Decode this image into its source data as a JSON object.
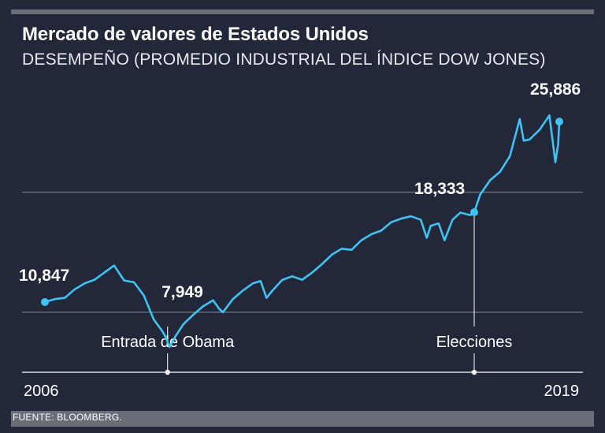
{
  "header": {
    "title": "Mercado de valores de Estados Unidos",
    "subtitle": "DESEMPEÑO (PROMEDIO INDUSTRIAL DEL ÍNDICE DOW JONES)"
  },
  "footer": {
    "source": "FUENTE: BLOOMBERG."
  },
  "colors": {
    "background": "#23273a",
    "line": "#3ec4f2",
    "grid": "#8a8d98",
    "text": "#ffffff"
  },
  "chart_data": {
    "type": "line",
    "title": "Mercado de valores de Estados Unidos",
    "subtitle": "DESEMPEÑO (PROMEDIO INDUSTRIAL DEL ÍNDICE DOW JONES)",
    "xlabel": "",
    "ylabel": "",
    "xlim": [
      2006,
      2019
    ],
    "ylim": [
      5000,
      28000
    ],
    "x_tick_labels": [
      "2006",
      "2019"
    ],
    "gridlines_y": [
      10000,
      20000
    ],
    "grid": true,
    "series": [
      {
        "name": "Dow Jones Industrial Average",
        "x": [
          2006.0,
          2006.25,
          2006.5,
          2006.75,
          2007.0,
          2007.25,
          2007.5,
          2007.75,
          2008.0,
          2008.25,
          2008.5,
          2008.75,
          2008.95,
          2009.05,
          2009.15,
          2009.3,
          2009.5,
          2009.75,
          2010.0,
          2010.25,
          2010.4,
          2010.5,
          2010.75,
          2011.0,
          2011.25,
          2011.45,
          2011.6,
          2011.75,
          2012.0,
          2012.25,
          2012.5,
          2012.75,
          2013.0,
          2013.25,
          2013.5,
          2013.75,
          2014.0,
          2014.25,
          2014.5,
          2014.75,
          2015.0,
          2015.25,
          2015.5,
          2015.65,
          2015.75,
          2015.95,
          2016.1,
          2016.3,
          2016.5,
          2016.75,
          2016.85,
          2017.0,
          2017.25,
          2017.5,
          2017.75,
          2018.0,
          2018.1,
          2018.25,
          2018.5,
          2018.75,
          2018.9,
          2018.97,
          2019.0
        ],
        "values": [
          10847,
          11100,
          11200,
          11900,
          12400,
          12700,
          13300,
          13900,
          12650,
          12500,
          11400,
          9400,
          8500,
          7949,
          7100,
          8000,
          9000,
          9800,
          10500,
          11000,
          10300,
          10000,
          11100,
          11800,
          12400,
          12600,
          11200,
          11800,
          12700,
          13000,
          12700,
          13300,
          14000,
          14800,
          15300,
          15200,
          16000,
          16500,
          16800,
          17500,
          17800,
          18000,
          17700,
          16200,
          17200,
          17400,
          16000,
          17700,
          18300,
          18100,
          18333,
          19800,
          21000,
          21700,
          23000,
          26100,
          24300,
          24400,
          25200,
          26400,
          22500,
          24000,
          25886
        ]
      }
    ],
    "annotations": [
      {
        "label": "10,847",
        "x": 2006.0,
        "value": 10847,
        "marker": true
      },
      {
        "label": "7,949",
        "x": 2009.05,
        "value": 7949,
        "marker": false
      },
      {
        "label": "18,333",
        "x": 2016.85,
        "value": 18333,
        "marker": true
      },
      {
        "label": "25,886",
        "x": 2019.0,
        "value": 25886,
        "marker": true
      }
    ],
    "events": [
      {
        "label": "Entrada de Obama",
        "x": 2009.1
      },
      {
        "label": "Elecciones",
        "x": 2016.85
      }
    ]
  }
}
